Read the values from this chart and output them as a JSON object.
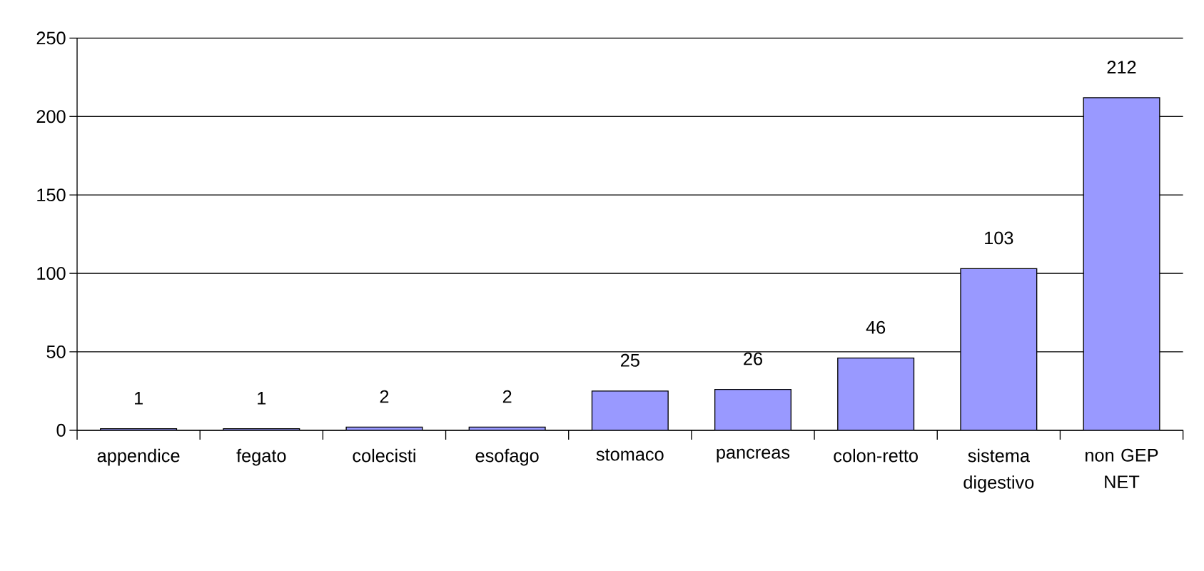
{
  "chart_data": {
    "type": "bar",
    "categories": [
      "appendice",
      "fegato",
      "colecisti",
      "esofago",
      "stomaco",
      "pancreas",
      "colon-retto",
      "sistema digestivo",
      "non GEP NET"
    ],
    "values": [
      1,
      1,
      2,
      2,
      25,
      26,
      46,
      103,
      212
    ],
    "color": "#9999ff",
    "ylim": [
      0,
      250
    ],
    "yticks": [
      0,
      50,
      100,
      150,
      200,
      250
    ],
    "grid": "y",
    "data_labels": true
  }
}
